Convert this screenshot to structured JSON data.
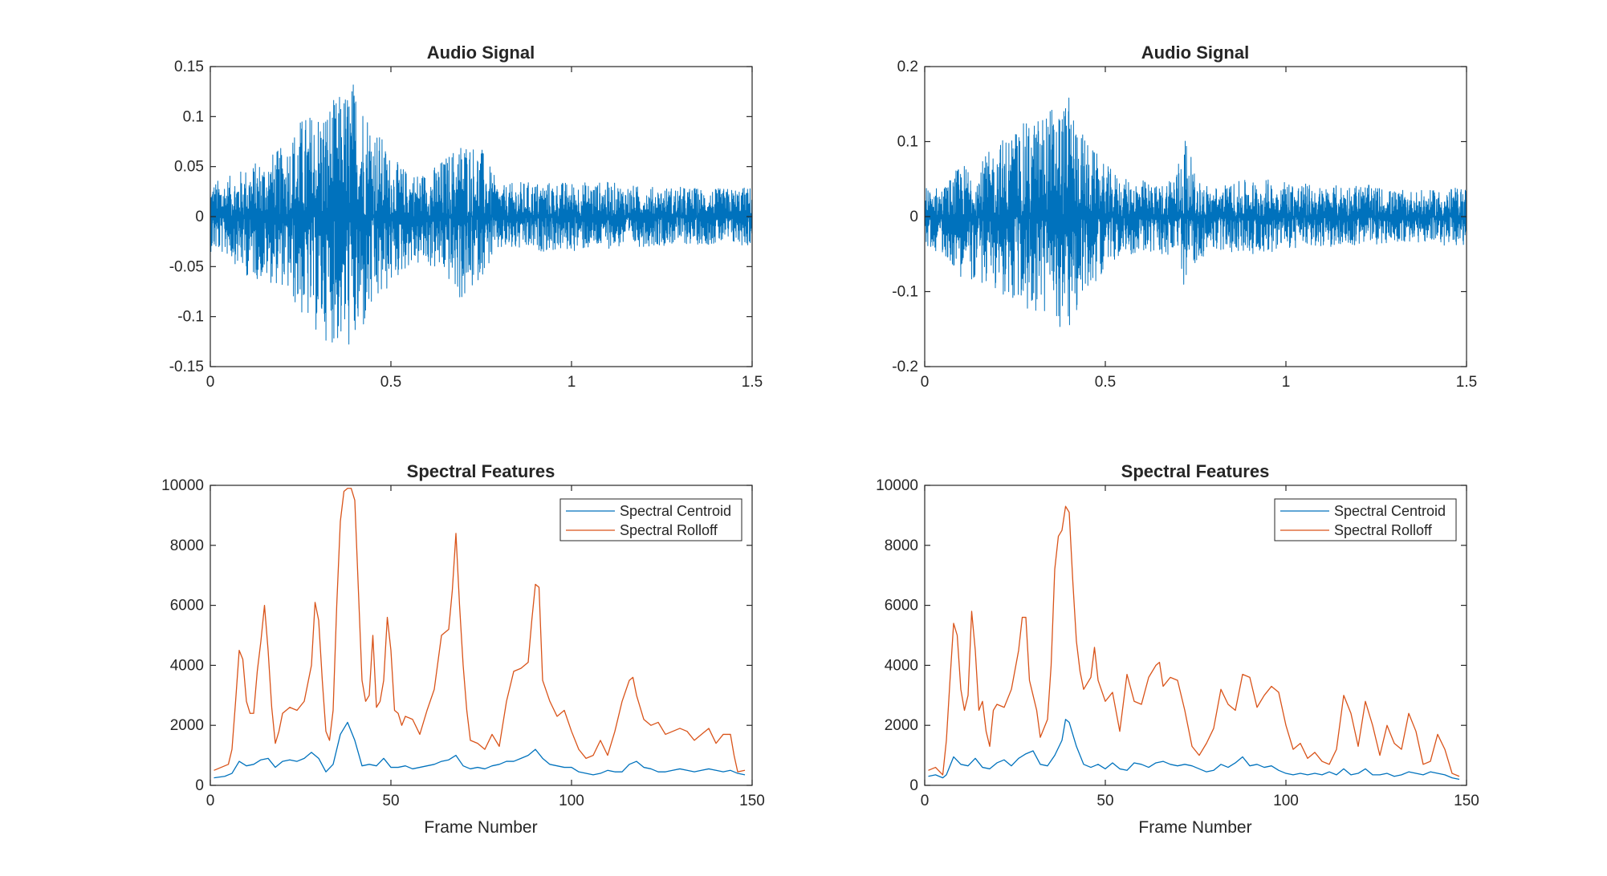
{
  "figure": {
    "background": "#ffffff"
  },
  "colors": {
    "blue": "#0072BD",
    "orange": "#D95319",
    "axis": "#262626",
    "legend_border": "#262626"
  },
  "chart_data": [
    {
      "type": "line",
      "title": "Audio Signal",
      "xlabel": "",
      "ylabel": "",
      "xlim": [
        0,
        1.5
      ],
      "ylim": [
        -0.15,
        0.15
      ],
      "xticks": [
        "0",
        "0.5",
        "1",
        "1.5"
      ],
      "yticks": [
        "-0.15",
        "-0.1",
        "-0.05",
        "0",
        "0.05",
        "0.1",
        "0.15"
      ],
      "grid": false,
      "legend": null,
      "series": [
        {
          "color": "#0072BD",
          "envelope": {
            "x": [
              0,
              0.05,
              0.1,
              0.15,
              0.2,
              0.25,
              0.3,
              0.35,
              0.4,
              0.45,
              0.5,
              0.55,
              0.6,
              0.65,
              0.7,
              0.75,
              0.8,
              0.85,
              0.9,
              1.0,
              1.1,
              1.2,
              1.3,
              1.4,
              1.5
            ],
            "max": [
              0.035,
              0.04,
              0.05,
              0.06,
              0.07,
              0.1,
              0.11,
              0.12,
              0.14,
              0.1,
              0.06,
              0.045,
              0.045,
              0.06,
              0.08,
              0.07,
              0.03,
              0.035,
              0.035,
              0.035,
              0.035,
              0.03,
              0.03,
              0.028,
              0.03
            ],
            "min": [
              -0.035,
              -0.04,
              -0.06,
              -0.065,
              -0.07,
              -0.1,
              -0.12,
              -0.13,
              -0.137,
              -0.1,
              -0.07,
              -0.05,
              -0.05,
              -0.06,
              -0.09,
              -0.06,
              -0.035,
              -0.035,
              -0.035,
              -0.035,
              -0.032,
              -0.03,
              -0.028,
              -0.028,
              -0.03
            ]
          }
        }
      ]
    },
    {
      "type": "line",
      "title": "Audio Signal",
      "xlabel": "",
      "ylabel": "",
      "xlim": [
        0,
        1.5
      ],
      "ylim": [
        -0.2,
        0.2
      ],
      "xticks": [
        "0",
        "0.5",
        "1",
        "1.5"
      ],
      "yticks": [
        "-0.2",
        "-0.1",
        "0",
        "0.1",
        "0.2"
      ],
      "grid": false,
      "legend": null,
      "series": [
        {
          "color": "#0072BD",
          "envelope": {
            "x": [
              0,
              0.05,
              0.1,
              0.15,
              0.2,
              0.25,
              0.3,
              0.35,
              0.4,
              0.45,
              0.5,
              0.55,
              0.6,
              0.65,
              0.7,
              0.72,
              0.75,
              0.8,
              0.9,
              1.0,
              1.1,
              1.2,
              1.3,
              1.4,
              1.5
            ],
            "max": [
              0.04,
              0.04,
              0.07,
              0.07,
              0.1,
              0.12,
              0.13,
              0.15,
              0.16,
              0.1,
              0.07,
              0.05,
              0.05,
              0.04,
              0.07,
              0.12,
              0.05,
              0.04,
              0.05,
              0.05,
              0.04,
              0.045,
              0.035,
              0.035,
              0.04
            ],
            "min": [
              -0.04,
              -0.05,
              -0.08,
              -0.09,
              -0.1,
              -0.12,
              -0.13,
              -0.14,
              -0.155,
              -0.1,
              -0.07,
              -0.05,
              -0.05,
              -0.05,
              -0.06,
              -0.1,
              -0.06,
              -0.045,
              -0.05,
              -0.045,
              -0.04,
              -0.04,
              -0.035,
              -0.035,
              -0.045
            ]
          }
        }
      ]
    },
    {
      "type": "line",
      "title": "Spectral Features",
      "xlabel": "Frame Number",
      "ylabel": "",
      "xlim": [
        0,
        150
      ],
      "ylim": [
        0,
        10000
      ],
      "xticks": [
        "0",
        "50",
        "100",
        "150"
      ],
      "yticks": [
        "0",
        "2000",
        "4000",
        "6000",
        "8000",
        "10000"
      ],
      "grid": false,
      "legend": "top-right",
      "series": [
        {
          "name": "Spectral Centroid",
          "color": "#0072BD",
          "x": [
            1,
            4,
            6,
            8,
            10,
            12,
            14,
            16,
            18,
            20,
            22,
            24,
            26,
            28,
            30,
            32,
            34,
            36,
            38,
            40,
            42,
            44,
            46,
            48,
            50,
            52,
            54,
            56,
            58,
            60,
            62,
            64,
            66,
            68,
            70,
            72,
            74,
            76,
            78,
            80,
            82,
            84,
            86,
            88,
            90,
            92,
            94,
            96,
            98,
            100,
            102,
            104,
            106,
            108,
            110,
            112,
            114,
            116,
            118,
            120,
            122,
            124,
            126,
            128,
            130,
            132,
            134,
            136,
            138,
            140,
            142,
            144,
            146,
            148
          ],
          "values": [
            250,
            300,
            400,
            800,
            650,
            700,
            850,
            900,
            600,
            800,
            850,
            800,
            900,
            1100,
            900,
            450,
            700,
            1700,
            2100,
            1500,
            650,
            700,
            650,
            900,
            600,
            600,
            650,
            550,
            600,
            650,
            700,
            800,
            850,
            1000,
            650,
            550,
            600,
            550,
            650,
            700,
            800,
            800,
            900,
            1000,
            1200,
            900,
            700,
            650,
            600,
            600,
            450,
            400,
            350,
            400,
            500,
            450,
            450,
            700,
            800,
            600,
            550,
            450,
            450,
            500,
            550,
            500,
            450,
            500,
            550,
            500,
            450,
            500,
            400,
            350
          ]
        },
        {
          "name": "Spectral Rolloff",
          "color": "#D95319",
          "x": [
            1,
            3,
            5,
            6,
            7,
            8,
            9,
            10,
            11,
            12,
            13,
            14,
            15,
            16,
            17,
            18,
            19,
            20,
            22,
            24,
            26,
            28,
            29,
            30,
            31,
            32,
            33,
            34,
            35,
            36,
            37,
            38,
            39,
            40,
            41,
            42,
            43,
            44,
            45,
            46,
            47,
            48,
            49,
            50,
            51,
            52,
            53,
            54,
            56,
            58,
            60,
            62,
            64,
            66,
            67,
            68,
            69,
            70,
            71,
            72,
            74,
            76,
            78,
            80,
            82,
            84,
            86,
            88,
            89,
            90,
            91,
            92,
            94,
            96,
            98,
            100,
            102,
            104,
            106,
            108,
            110,
            112,
            114,
            116,
            117,
            118,
            120,
            122,
            124,
            126,
            128,
            130,
            132,
            134,
            136,
            138,
            140,
            142,
            144,
            145,
            146,
            148
          ],
          "values": [
            500,
            600,
            700,
            1200,
            2800,
            4500,
            4200,
            2800,
            2400,
            2400,
            3800,
            4800,
            6000,
            4500,
            2600,
            1400,
            1800,
            2400,
            2600,
            2500,
            2800,
            4000,
            6100,
            5500,
            3500,
            1800,
            1500,
            2500,
            6000,
            8800,
            9800,
            9900,
            9900,
            9500,
            6500,
            3500,
            2800,
            3000,
            5000,
            2600,
            2800,
            3500,
            5600,
            4500,
            2500,
            2400,
            2000,
            2300,
            2200,
            1700,
            2500,
            3200,
            5000,
            5200,
            6500,
            8400,
            6000,
            4000,
            2500,
            1500,
            1400,
            1200,
            1700,
            1300,
            2800,
            3800,
            3900,
            4100,
            5500,
            6700,
            6600,
            3500,
            2800,
            2300,
            2500,
            1800,
            1200,
            900,
            1000,
            1500,
            1000,
            1800,
            2800,
            3500,
            3600,
            3000,
            2200,
            2000,
            2100,
            1700,
            1800,
            1900,
            1800,
            1500,
            1700,
            1900,
            1400,
            1700,
            1700,
            1000,
            450,
            500
          ]
        }
      ]
    },
    {
      "type": "line",
      "title": "Spectral Features",
      "xlabel": "Frame Number",
      "ylabel": "",
      "xlim": [
        0,
        150
      ],
      "ylim": [
        0,
        10000
      ],
      "xticks": [
        "0",
        "50",
        "100",
        "150"
      ],
      "yticks": [
        "0",
        "2000",
        "4000",
        "6000",
        "8000",
        "10000"
      ],
      "grid": false,
      "legend": "top-right",
      "series": [
        {
          "name": "Spectral Centroid",
          "color": "#0072BD",
          "x": [
            1,
            3,
            5,
            6,
            8,
            10,
            12,
            14,
            16,
            18,
            20,
            22,
            24,
            26,
            28,
            30,
            32,
            34,
            36,
            38,
            39,
            40,
            42,
            44,
            46,
            48,
            50,
            52,
            54,
            56,
            58,
            60,
            62,
            64,
            66,
            68,
            70,
            72,
            74,
            76,
            78,
            80,
            82,
            84,
            86,
            88,
            90,
            92,
            94,
            96,
            98,
            100,
            102,
            104,
            106,
            108,
            110,
            112,
            114,
            116,
            118,
            120,
            122,
            124,
            126,
            128,
            130,
            132,
            134,
            136,
            138,
            140,
            142,
            144,
            146,
            148
          ],
          "values": [
            300,
            350,
            250,
            350,
            950,
            700,
            650,
            900,
            600,
            550,
            750,
            850,
            650,
            900,
            1050,
            1150,
            700,
            650,
            1000,
            1500,
            2200,
            2100,
            1300,
            700,
            600,
            700,
            550,
            750,
            550,
            500,
            750,
            700,
            600,
            750,
            800,
            700,
            650,
            700,
            650,
            550,
            450,
            500,
            700,
            600,
            750,
            950,
            650,
            700,
            600,
            650,
            500,
            400,
            350,
            400,
            350,
            400,
            350,
            450,
            350,
            550,
            350,
            400,
            550,
            350,
            350,
            400,
            300,
            350,
            450,
            400,
            350,
            450,
            400,
            350,
            250,
            200
          ]
        },
        {
          "name": "Spectral Rolloff",
          "color": "#D95319",
          "x": [
            1,
            3,
            5,
            6,
            7,
            8,
            9,
            10,
            11,
            12,
            13,
            14,
            15,
            16,
            17,
            18,
            19,
            20,
            22,
            24,
            26,
            27,
            28,
            29,
            30,
            31,
            32,
            34,
            35,
            36,
            37,
            38,
            39,
            40,
            41,
            42,
            43,
            44,
            46,
            47,
            48,
            50,
            52,
            54,
            56,
            58,
            60,
            62,
            64,
            65,
            66,
            68,
            70,
            72,
            74,
            76,
            78,
            80,
            82,
            84,
            86,
            88,
            90,
            92,
            94,
            96,
            98,
            100,
            102,
            104,
            106,
            108,
            110,
            112,
            114,
            116,
            118,
            120,
            122,
            124,
            126,
            128,
            130,
            132,
            134,
            136,
            138,
            140,
            142,
            144,
            146,
            148
          ],
          "values": [
            500,
            600,
            350,
            1500,
            3500,
            5400,
            5000,
            3200,
            2500,
            3000,
            5800,
            4500,
            2500,
            2800,
            1800,
            1300,
            2500,
            2700,
            2600,
            3200,
            4500,
            5600,
            5600,
            3500,
            3000,
            2500,
            1600,
            2200,
            4000,
            7200,
            8300,
            8500,
            9300,
            9100,
            6800,
            4800,
            3800,
            3200,
            3600,
            4600,
            3500,
            2800,
            3100,
            1800,
            3700,
            2800,
            2700,
            3600,
            4000,
            4100,
            3300,
            3600,
            3500,
            2500,
            1300,
            1000,
            1400,
            1900,
            3200,
            2700,
            2500,
            3700,
            3600,
            2600,
            3000,
            3300,
            3100,
            2000,
            1200,
            1400,
            900,
            1100,
            800,
            700,
            1200,
            3000,
            2400,
            1300,
            2800,
            2000,
            1000,
            2000,
            1400,
            1200,
            2400,
            1800,
            700,
            800,
            1700,
            1200,
            400,
            300
          ]
        }
      ]
    }
  ]
}
